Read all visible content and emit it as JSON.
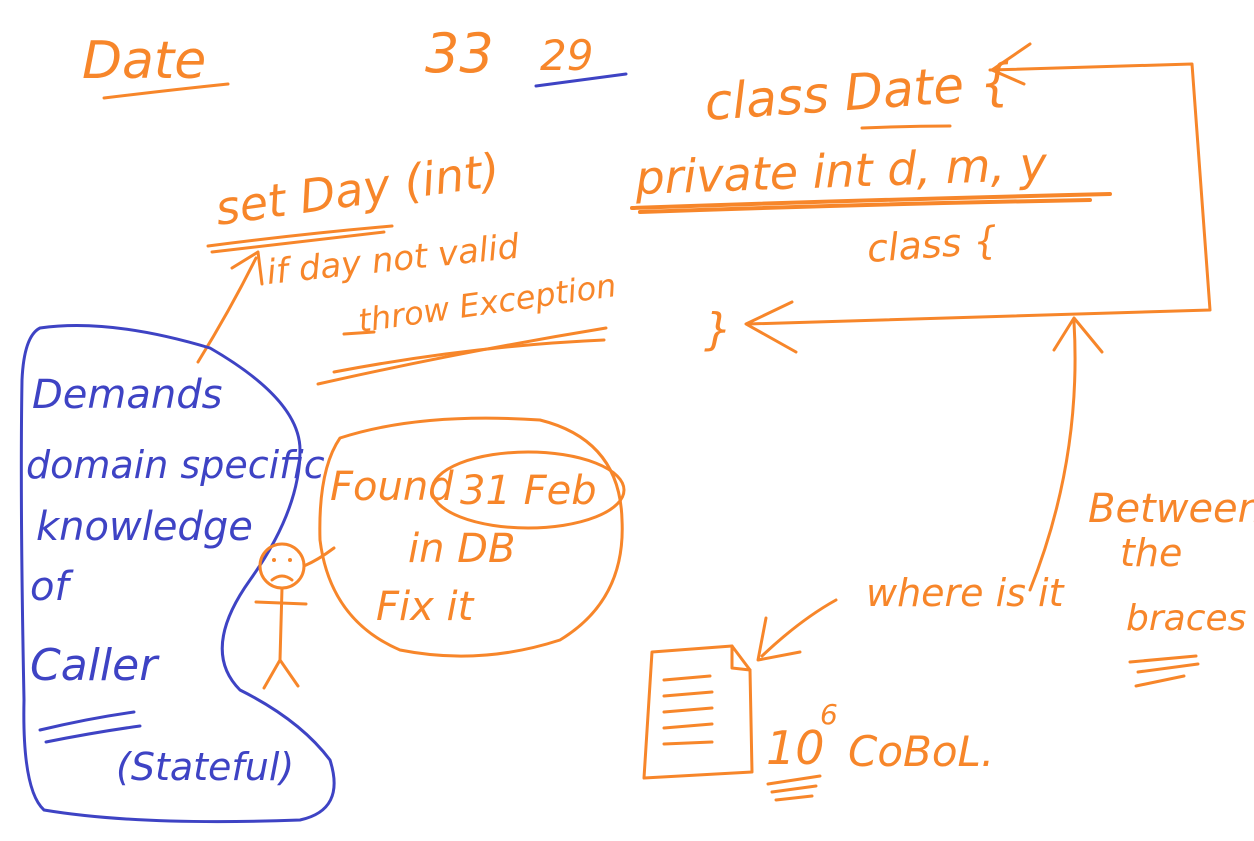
{
  "colors": {
    "orange": "#F7862A",
    "blue": "#3E43C4",
    "background": "#FFFFFF"
  },
  "labels": {
    "date_title": "Date",
    "num_33": "33",
    "num_29": "29",
    "set_day": "set Day (int)",
    "if_line": "if day not valid",
    "throw_line": "throw Exception",
    "class_date": "class Date {",
    "private_line": "private int d, m, y",
    "inner_class": "class {",
    "close_brace": "}",
    "demands_1": "Demands",
    "demands_2": "domain specific",
    "demands_3": "knowledge",
    "demands_4": "of",
    "demands_5": "Caller",
    "stateful": "(Stateful)",
    "found_1": "Found",
    "found_31feb": "31 Feb",
    "found_2": "in DB",
    "found_3": "Fix it",
    "where_is_it": "where is it",
    "between_1": "Between",
    "between_2": "the",
    "between_3": "braces",
    "ten_six": "10",
    "exp_six": "6",
    "cobol": "CoBoL."
  }
}
